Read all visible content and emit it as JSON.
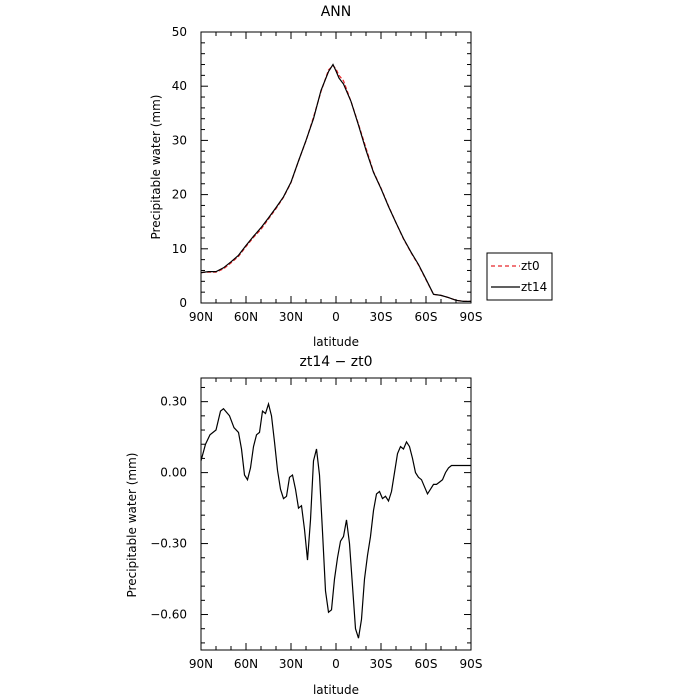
{
  "chart_data": [
    {
      "type": "line",
      "title": "ANN",
      "xlabel": "latitude",
      "ylabel": "Precipitable water (mm)",
      "xlim": [
        90,
        -90
      ],
      "ylim": [
        0,
        50
      ],
      "x_ticks": [
        90,
        60,
        30,
        0,
        -30,
        -60,
        -90
      ],
      "x_ticklabels": [
        "90N",
        "60N",
        "30N",
        "0",
        "30S",
        "60S",
        "90S"
      ],
      "y_ticks": [
        0,
        10,
        20,
        30,
        40,
        50
      ],
      "y_ticklabels": [
        "0",
        "10",
        "20",
        "30",
        "40",
        "50"
      ],
      "legend": "right-outside",
      "series": [
        {
          "name": "zt0",
          "color": "#e8262a",
          "dash": "dashed",
          "x": [
            90,
            85,
            80,
            75,
            70,
            65,
            60,
            55,
            50,
            45,
            40,
            35,
            30,
            25,
            20,
            15,
            10,
            5,
            2,
            0,
            -2,
            -5,
            -10,
            -15,
            -20,
            -25,
            -30,
            -35,
            -40,
            -45,
            -50,
            -55,
            -60,
            -65,
            -70,
            -75,
            -80,
            -85,
            -90
          ],
          "y": [
            5.6,
            5.7,
            5.7,
            6.3,
            7.4,
            8.6,
            10.4,
            12.1,
            13.6,
            15.5,
            17.4,
            19.5,
            22.2,
            26.2,
            29.9,
            34.3,
            39.0,
            43.0,
            43.8,
            43.2,
            42.0,
            41.0,
            37.2,
            33.0,
            28.6,
            24.2,
            21.2,
            17.9,
            14.8,
            11.8,
            9.3,
            7.0,
            4.3,
            1.6,
            1.4,
            1.0,
            0.5,
            0.3,
            0.3
          ]
        },
        {
          "name": "zt14",
          "color": "#000000",
          "dash": "solid",
          "x": [
            90,
            85,
            80,
            75,
            70,
            65,
            60,
            55,
            50,
            45,
            40,
            35,
            30,
            25,
            20,
            15,
            10,
            5,
            2,
            0,
            -2,
            -5,
            -10,
            -15,
            -20,
            -25,
            -30,
            -35,
            -40,
            -45,
            -50,
            -55,
            -60,
            -65,
            -70,
            -75,
            -80,
            -85,
            -90
          ],
          "y": [
            5.6,
            5.8,
            5.8,
            6.5,
            7.6,
            8.8,
            10.6,
            12.3,
            13.9,
            15.7,
            17.6,
            19.6,
            22.3,
            26.2,
            30.0,
            34.0,
            39.2,
            42.7,
            44.0,
            42.8,
            41.5,
            40.4,
            37.2,
            32.8,
            28.2,
            24.1,
            21.1,
            17.8,
            14.8,
            11.9,
            9.4,
            7.1,
            4.4,
            1.6,
            1.4,
            1.0,
            0.5,
            0.3,
            0.3
          ]
        }
      ]
    },
    {
      "type": "line",
      "title": "zt14 − zt0",
      "xlabel": "latitude",
      "ylabel": "Precipitable water (mm)",
      "xlim": [
        90,
        -90
      ],
      "ylim": [
        -0.75,
        0.4
      ],
      "x_ticks": [
        90,
        60,
        30,
        0,
        -30,
        -60,
        -90
      ],
      "x_ticklabels": [
        "90N",
        "60N",
        "30N",
        "0",
        "30S",
        "60S",
        "90S"
      ],
      "y_ticks": [
        0.3,
        0.0,
        -0.3,
        -0.6
      ],
      "y_ticklabels": [
        "0.30",
        "0.00",
        "−0.30",
        "−0.60"
      ],
      "series": [
        {
          "name": "",
          "color": "#000000",
          "dash": "solid",
          "x": [
            90,
            87,
            84,
            80,
            77,
            75,
            71,
            68,
            65,
            63,
            61,
            59,
            57,
            55,
            53,
            51,
            49,
            47,
            45,
            43,
            41,
            39,
            37,
            35,
            33,
            31,
            29,
            27,
            25,
            23,
            21,
            19,
            17,
            15,
            13,
            11,
            9,
            7,
            5,
            3,
            1,
            -1,
            -3,
            -5,
            -7,
            -9,
            -11,
            -13,
            -15,
            -17,
            -19,
            -21,
            -23,
            -25,
            -27,
            -29,
            -31,
            -33,
            -35,
            -37,
            -39,
            -41,
            -43,
            -45,
            -47,
            -49,
            -51,
            -53,
            -55,
            -57,
            -59,
            -61,
            -63,
            -65,
            -67,
            -69,
            -71,
            -73,
            -75,
            -77,
            -80,
            -84,
            -87,
            -90
          ],
          "y": [
            0.05,
            0.12,
            0.16,
            0.18,
            0.26,
            0.27,
            0.24,
            0.19,
            0.17,
            0.1,
            -0.01,
            -0.03,
            0.02,
            0.11,
            0.16,
            0.17,
            0.26,
            0.25,
            0.29,
            0.24,
            0.13,
            0.01,
            -0.07,
            -0.11,
            -0.1,
            -0.02,
            -0.01,
            -0.07,
            -0.15,
            -0.14,
            -0.24,
            -0.37,
            -0.2,
            0.05,
            0.1,
            -0.01,
            -0.25,
            -0.5,
            -0.59,
            -0.58,
            -0.45,
            -0.36,
            -0.29,
            -0.27,
            -0.2,
            -0.3,
            -0.48,
            -0.66,
            -0.7,
            -0.62,
            -0.45,
            -0.35,
            -0.27,
            -0.16,
            -0.09,
            -0.08,
            -0.11,
            -0.1,
            -0.12,
            -0.08,
            0.0,
            0.08,
            0.11,
            0.1,
            0.13,
            0.11,
            0.06,
            0.0,
            -0.02,
            -0.03,
            -0.06,
            -0.09,
            -0.07,
            -0.05,
            -0.05,
            -0.04,
            -0.03,
            0.0,
            0.02,
            0.03,
            0.03,
            0.03,
            0.03,
            0.03
          ]
        }
      ]
    }
  ]
}
